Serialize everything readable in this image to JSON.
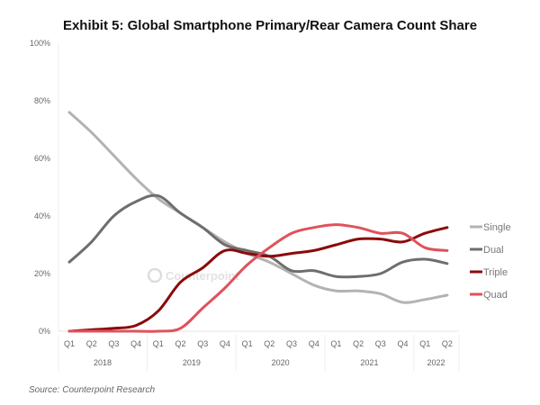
{
  "chart_data": {
    "type": "line",
    "title": "Exhibit 5: Global Smartphone Primary/Rear Camera Count Share",
    "source": "Source: Counterpoint Research",
    "watermark": "Counterpoint",
    "x_quarters": [
      "Q1",
      "Q2",
      "Q3",
      "Q4",
      "Q1",
      "Q2",
      "Q3",
      "Q4",
      "Q1",
      "Q2",
      "Q3",
      "Q4",
      "Q1",
      "Q2",
      "Q3",
      "Q4",
      "Q1",
      "Q2"
    ],
    "x_years": [
      {
        "label": "2018",
        "quarters": 4
      },
      {
        "label": "2019",
        "quarters": 4
      },
      {
        "label": "2020",
        "quarters": 4
      },
      {
        "label": "2021",
        "quarters": 4
      },
      {
        "label": "2022",
        "quarters": 2
      }
    ],
    "y_ticks": [
      "0%",
      "20%",
      "40%",
      "60%",
      "80%",
      "100%"
    ],
    "ylim": [
      0,
      100
    ],
    "legend_position": "right",
    "series": [
      {
        "name": "Single",
        "color": "#b3b3b3",
        "values": [
          76,
          69,
          61,
          53,
          46,
          41,
          36,
          31,
          27,
          24,
          20,
          16,
          14,
          14,
          13,
          10,
          11,
          12.5
        ]
      },
      {
        "name": "Dual",
        "color": "#6e6e6e",
        "values": [
          24,
          31,
          40,
          45,
          47,
          41,
          36,
          30,
          28,
          26,
          21,
          21,
          19,
          19,
          20,
          24,
          25,
          23.5
        ]
      },
      {
        "name": "Triple",
        "color": "#8b0a0a",
        "values": [
          0,
          0.5,
          1,
          2,
          7,
          17,
          22,
          28,
          27,
          26,
          27,
          28,
          30,
          32,
          32,
          31,
          34,
          36
        ]
      },
      {
        "name": "Quad",
        "color": "#e0525a",
        "values": [
          0,
          0,
          0,
          0,
          0,
          1,
          8,
          15,
          23,
          29,
          34,
          36,
          37,
          36,
          34,
          34,
          29,
          28
        ]
      }
    ]
  }
}
